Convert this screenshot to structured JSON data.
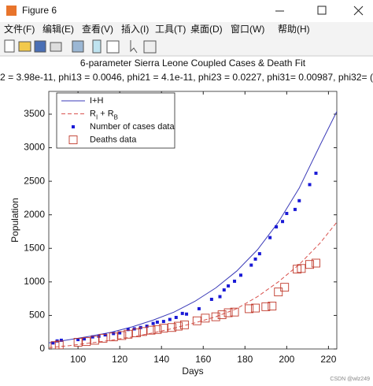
{
  "window": {
    "title": "Figure 6",
    "menu": [
      "文件(F)",
      "编辑(E)",
      "查看(V)",
      "插入(I)",
      "工具(T)",
      "桌面(D)",
      "窗口(W)",
      "帮助(H)"
    ],
    "watermark": "CSDN @wlz249"
  },
  "chart_data": {
    "type": "line",
    "title": "6-parameter Sierra Leone Coupled Cases & Death Fit",
    "subtitle": "2 = 3.98e-11, phi13 = 0.0046, phi21 = 4.1e-11, phi23 = 0.0227, phi31= 0.00987, phi32= (",
    "xlabel": "Days",
    "ylabel": "Population",
    "xlim": [
      86,
      224
    ],
    "ylim": [
      0,
      3840
    ],
    "xticks": [
      100,
      120,
      140,
      160,
      180,
      200,
      220
    ],
    "yticks": [
      0,
      500,
      1000,
      1500,
      2000,
      2500,
      3000,
      3500
    ],
    "legend": "upper left",
    "series": [
      {
        "name": "I+H",
        "color": "#3b3bb8",
        "style": "solid",
        "x": [
          86,
          96,
          106,
          116,
          126,
          136,
          146,
          156,
          166,
          176,
          186,
          196,
          206,
          216,
          224
        ],
        "values": [
          90,
          140,
          190,
          250,
          330,
          430,
          550,
          710,
          910,
          1160,
          1480,
          1890,
          2400,
          3040,
          3540
        ]
      },
      {
        "name": "R_I + R_B",
        "color": "#d9534f",
        "style": "dashed",
        "x": [
          86,
          96,
          106,
          116,
          126,
          136,
          146,
          156,
          166,
          176,
          186,
          196,
          206,
          216,
          224
        ],
        "values": [
          20,
          50,
          90,
          130,
          180,
          240,
          310,
          390,
          480,
          600,
          780,
          1000,
          1260,
          1580,
          1890
        ]
      },
      {
        "name": "Number of cases data",
        "color": "#1a1ad6",
        "style": "filled-square",
        "x": [
          88,
          90,
          92,
          100,
          103,
          107,
          110,
          113,
          117,
          120,
          124,
          127,
          130,
          133,
          136,
          138,
          141,
          144,
          147,
          150,
          152,
          158,
          164,
          168,
          170,
          172,
          175,
          178,
          183,
          185,
          187,
          192,
          195,
          198,
          200,
          204,
          206,
          211,
          214
        ],
        "values": [
          90,
          120,
          130,
          140,
          150,
          180,
          190,
          210,
          230,
          240,
          290,
          300,
          320,
          340,
          380,
          400,
          410,
          440,
          470,
          530,
          520,
          600,
          740,
          780,
          880,
          940,
          1010,
          1100,
          1250,
          1340,
          1420,
          1660,
          1820,
          1900,
          2020,
          2080,
          2210,
          2450,
          2620
        ]
      },
      {
        "name": "Deaths data",
        "color": "#c0392b",
        "style": "open-square",
        "x": [
          89,
          91,
          100,
          104,
          108,
          112,
          117,
          121,
          124,
          128,
          131,
          135,
          138,
          141,
          145,
          148,
          151,
          157,
          161,
          166,
          169,
          172,
          175,
          182,
          185,
          190,
          193,
          196,
          199,
          205,
          207,
          211,
          214
        ],
        "values": [
          50,
          60,
          100,
          110,
          130,
          160,
          180,
          200,
          220,
          240,
          260,
          280,
          290,
          310,
          320,
          340,
          360,
          420,
          460,
          480,
          510,
          540,
          550,
          600,
          610,
          630,
          640,
          850,
          920,
          1190,
          1200,
          1260,
          1280
        ]
      }
    ]
  }
}
